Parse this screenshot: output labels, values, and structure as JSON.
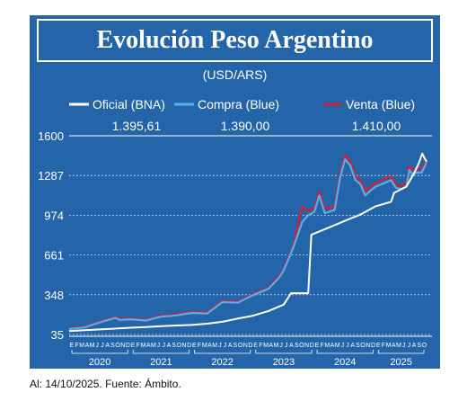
{
  "title": "Evolución Peso Argentino",
  "unit": "(USD/ARS)",
  "footnote": "Al: 14/10/2025. Fuente: Ámbito.",
  "colors": {
    "background": "#2464a8",
    "oficial": "#ffffff",
    "compra": "#58aee6",
    "venta": "#d0203a"
  },
  "chart_data": {
    "type": "line",
    "ylim": [
      35,
      1600
    ],
    "yticks": [
      "1600",
      "1287",
      "974",
      "661",
      "348",
      "35"
    ],
    "ytick_values": [
      1600,
      1287,
      974,
      661,
      348,
      35
    ],
    "x_range": [
      2020.0,
      2025.83
    ],
    "month_letters": [
      "E",
      "F",
      "M",
      "A",
      "M",
      "J",
      "J",
      "A",
      "S",
      "O",
      "N",
      "D"
    ],
    "years": [
      {
        "label": "2020",
        "start": 2020,
        "months": 12
      },
      {
        "label": "2021",
        "start": 2021,
        "months": 12
      },
      {
        "label": "2022",
        "start": 2022,
        "months": 12
      },
      {
        "label": "2023",
        "start": 2023,
        "months": 12
      },
      {
        "label": "2024",
        "start": 2024,
        "months": 12
      },
      {
        "label": "2025",
        "start": 2025,
        "months": 10
      }
    ],
    "latest_values": [
      {
        "series": "Oficial (BNA)",
        "value": "1.395,61"
      },
      {
        "series": "Compra (Blue)",
        "value": "1.390,00"
      },
      {
        "series": "Venta (Blue)",
        "value": "1.410,00"
      }
    ],
    "series": [
      {
        "name": "Oficial (BNA)",
        "points": [
          [
            2020.0,
            62
          ],
          [
            2020.25,
            68
          ],
          [
            2020.5,
            75
          ],
          [
            2020.75,
            81
          ],
          [
            2021.0,
            88
          ],
          [
            2021.25,
            94
          ],
          [
            2021.5,
            100
          ],
          [
            2021.75,
            106
          ],
          [
            2022.0,
            110
          ],
          [
            2022.25,
            120
          ],
          [
            2022.5,
            135
          ],
          [
            2022.75,
            160
          ],
          [
            2023.0,
            183
          ],
          [
            2023.25,
            220
          ],
          [
            2023.5,
            270
          ],
          [
            2023.62,
            360
          ],
          [
            2023.9,
            360
          ],
          [
            2023.95,
            820
          ],
          [
            2024.0,
            830
          ],
          [
            2024.25,
            880
          ],
          [
            2024.5,
            930
          ],
          [
            2024.75,
            980
          ],
          [
            2025.0,
            1045
          ],
          [
            2025.25,
            1080
          ],
          [
            2025.3,
            1150
          ],
          [
            2025.5,
            1200
          ],
          [
            2025.62,
            1300
          ],
          [
            2025.7,
            1380
          ],
          [
            2025.76,
            1460
          ],
          [
            2025.8,
            1420
          ],
          [
            2025.83,
            1395.61
          ]
        ]
      },
      {
        "name": "Compra (Blue)",
        "points": [
          [
            2020.0,
            78
          ],
          [
            2020.25,
            90
          ],
          [
            2020.5,
            130
          ],
          [
            2020.75,
            165
          ],
          [
            2020.83,
            150
          ],
          [
            2021.0,
            155
          ],
          [
            2021.25,
            145
          ],
          [
            2021.5,
            175
          ],
          [
            2021.75,
            185
          ],
          [
            2022.0,
            205
          ],
          [
            2022.25,
            200
          ],
          [
            2022.5,
            290
          ],
          [
            2022.75,
            285
          ],
          [
            2023.0,
            345
          ],
          [
            2023.25,
            395
          ],
          [
            2023.42,
            480
          ],
          [
            2023.5,
            540
          ],
          [
            2023.66,
            725
          ],
          [
            2023.8,
            920
          ],
          [
            2023.9,
            975
          ],
          [
            2024.0,
            1000
          ],
          [
            2024.08,
            1130
          ],
          [
            2024.17,
            990
          ],
          [
            2024.33,
            1015
          ],
          [
            2024.42,
            1270
          ],
          [
            2024.5,
            1415
          ],
          [
            2024.58,
            1370
          ],
          [
            2024.67,
            1250
          ],
          [
            2024.75,
            1220
          ],
          [
            2024.83,
            1130
          ],
          [
            2024.92,
            1170
          ],
          [
            2025.0,
            1200
          ],
          [
            2025.1,
            1220
          ],
          [
            2025.25,
            1250
          ],
          [
            2025.33,
            1190
          ],
          [
            2025.42,
            1180
          ],
          [
            2025.5,
            1200
          ],
          [
            2025.55,
            1330
          ],
          [
            2025.6,
            1300
          ],
          [
            2025.67,
            1310
          ],
          [
            2025.75,
            1310
          ],
          [
            2025.83,
            1390
          ]
        ]
      },
      {
        "name": "Venta (Blue)",
        "points": [
          [
            2020.0,
            82
          ],
          [
            2020.25,
            95
          ],
          [
            2020.5,
            135
          ],
          [
            2020.75,
            172
          ],
          [
            2020.83,
            158
          ],
          [
            2021.0,
            160
          ],
          [
            2021.25,
            152
          ],
          [
            2021.5,
            182
          ],
          [
            2021.75,
            192
          ],
          [
            2022.0,
            212
          ],
          [
            2022.25,
            208
          ],
          [
            2022.5,
            297
          ],
          [
            2022.75,
            292
          ],
          [
            2023.0,
            352
          ],
          [
            2023.25,
            405
          ],
          [
            2023.42,
            492
          ],
          [
            2023.5,
            550
          ],
          [
            2023.66,
            740
          ],
          [
            2023.8,
            1040
          ],
          [
            2023.9,
            1005
          ],
          [
            2024.0,
            1030
          ],
          [
            2024.08,
            1160
          ],
          [
            2024.17,
            1020
          ],
          [
            2024.33,
            1045
          ],
          [
            2024.42,
            1300
          ],
          [
            2024.5,
            1445
          ],
          [
            2024.58,
            1400
          ],
          [
            2024.67,
            1280
          ],
          [
            2024.75,
            1250
          ],
          [
            2024.83,
            1160
          ],
          [
            2024.92,
            1200
          ],
          [
            2025.0,
            1230
          ],
          [
            2025.1,
            1250
          ],
          [
            2025.25,
            1280
          ],
          [
            2025.33,
            1215
          ],
          [
            2025.42,
            1205
          ],
          [
            2025.5,
            1225
          ],
          [
            2025.55,
            1360
          ],
          [
            2025.6,
            1330
          ],
          [
            2025.67,
            1340
          ],
          [
            2025.75,
            1340
          ],
          [
            2025.83,
            1410
          ]
        ]
      }
    ]
  }
}
